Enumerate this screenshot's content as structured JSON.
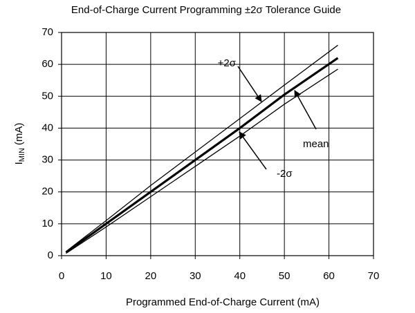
{
  "chart_data": {
    "type": "line",
    "title": "End-of-Charge Current Programming ±2σ Tolerance Guide",
    "x_label": "Programmed End-of-Charge Current (mA)",
    "y_label": {
      "main": "I",
      "sub": "MIN",
      "unit": "(mA)"
    },
    "x": [
      1,
      10,
      20,
      30,
      40,
      50,
      62
    ],
    "series": [
      {
        "name": "+2σ",
        "color": "#000000",
        "values": [
          1.3,
          11,
          22,
          32.5,
          43,
          53.5,
          66
        ]
      },
      {
        "name": "mean",
        "color": "#000000",
        "values": [
          1,
          10,
          20,
          30,
          40,
          50.5,
          62
        ]
      },
      {
        "name": "-2σ",
        "color": "#000000",
        "values": [
          0.7,
          9,
          18.5,
          28,
          37.5,
          47.5,
          58.5
        ]
      }
    ],
    "xlim": [
      0,
      70
    ],
    "ylim": [
      0,
      70
    ],
    "xticks": [
      0,
      10,
      20,
      30,
      40,
      50,
      60,
      70
    ],
    "yticks": [
      0,
      10,
      20,
      30,
      40,
      50,
      60,
      70
    ],
    "grid": true
  }
}
